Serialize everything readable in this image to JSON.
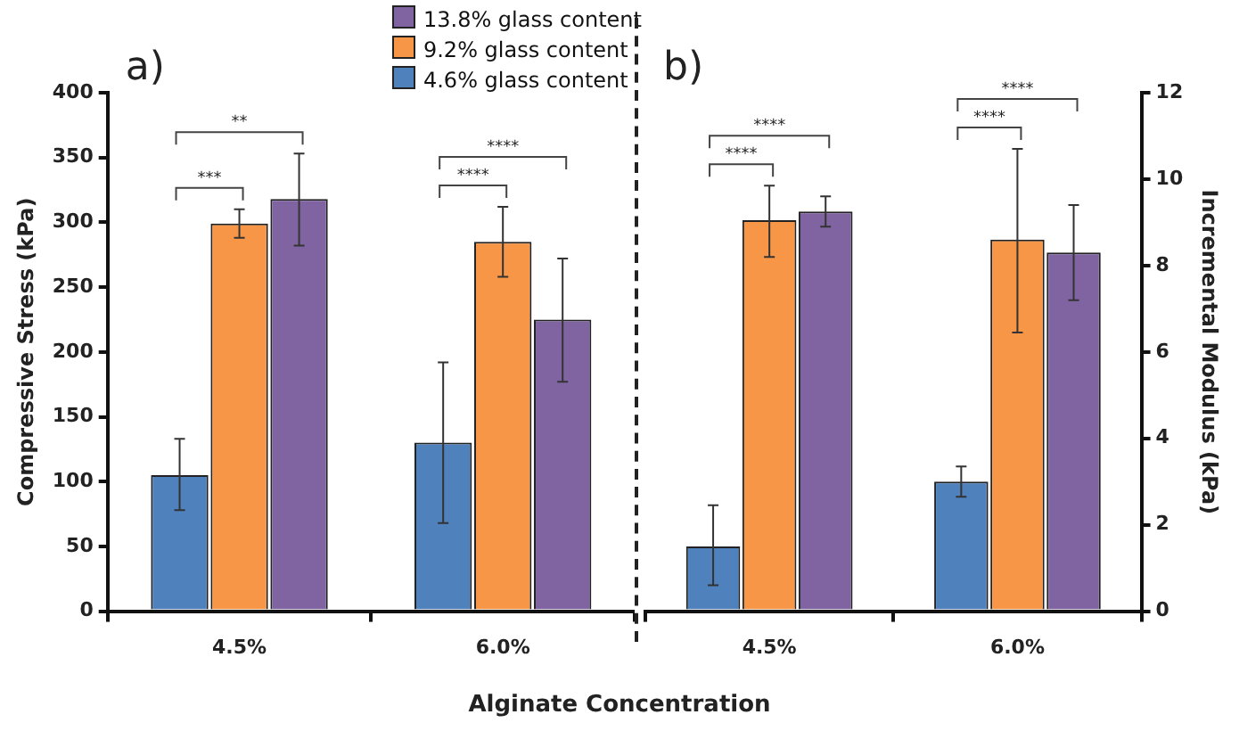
{
  "chart_data": [
    {
      "type": "bar",
      "ylabel": "Compressive Stress (kPa)",
      "xlabel": "Alginate Concentration",
      "categories": [
        "4.5%",
        "6.0%"
      ],
      "ylim": [
        0,
        400
      ],
      "yticks": [
        0,
        50,
        100,
        150,
        200,
        250,
        300,
        350,
        400
      ],
      "grid": false,
      "legend": "top right",
      "series": [
        {
          "name": "4.6% glass content",
          "color": "#4f81bd",
          "values": [
            105,
            130
          ],
          "errors": [
            [
              78,
              133
            ],
            [
              68,
              192
            ]
          ]
        },
        {
          "name": "9.2% glass content",
          "color": "#f79646",
          "values": [
            299,
            285
          ],
          "errors": [
            [
              288,
              310
            ],
            [
              258,
              312
            ]
          ]
        },
        {
          "name": "13.8% glass content",
          "color": "#8064a2",
          "values": [
            318,
            225
          ],
          "errors": [
            [
              282,
              353
            ],
            [
              177,
              272
            ]
          ]
        }
      ],
      "annotations": [
        "a)",
        "***",
        "**",
        "****",
        "****"
      ]
    },
    {
      "type": "bar",
      "y2label": "Incremental Modulus (kPa)",
      "categories": [
        "4.5%",
        "6.0%"
      ],
      "y2lim": [
        0,
        12
      ],
      "y2ticks": [
        0,
        2,
        4,
        6,
        8,
        10,
        12
      ],
      "grid": false,
      "series": [
        {
          "color": "#4f81bd",
          "axis": "y2",
          "values": [
            1.5,
            3.0
          ],
          "errors": [
            [
              0.6,
              2.45
            ],
            [
              2.65,
              3.35
            ]
          ]
        },
        {
          "color": "#f79646",
          "axis": "y2",
          "values": [
            9.05,
            8.6
          ],
          "errors": [
            [
              8.2,
              9.85
            ],
            [
              6.45,
              10.7
            ]
          ]
        },
        {
          "color": "#8064a2",
          "axis": "y2",
          "values": [
            9.25,
            8.3
          ],
          "errors": [
            [
              8.9,
              9.6
            ],
            [
              7.2,
              9.4
            ]
          ]
        }
      ],
      "annotations": [
        "b)",
        "****",
        "****",
        "****",
        "****"
      ]
    }
  ]
}
